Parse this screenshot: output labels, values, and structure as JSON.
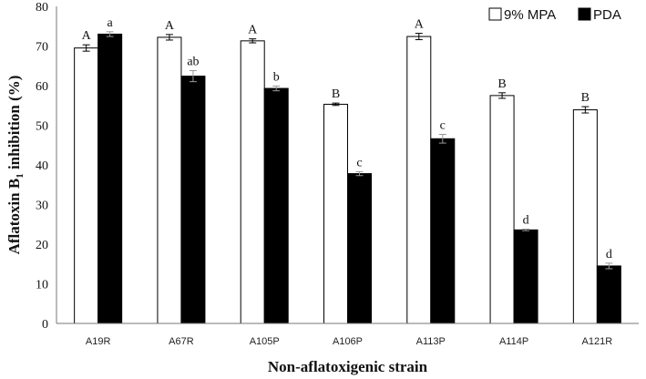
{
  "chart_data": {
    "type": "bar",
    "xlabel": "Non-aflatoxigenic strain",
    "ylabel": {
      "pre": "Aflatoxin B",
      "sub": "1",
      "post": " inhibition (%)"
    },
    "ylim": [
      0,
      80
    ],
    "yticks": [
      0,
      10,
      20,
      30,
      40,
      50,
      60,
      70,
      80
    ],
    "grid": false,
    "legend_position": "top-right",
    "categories": [
      "A19R",
      "A67R",
      "A105P",
      "A106P",
      "A113P",
      "A114P",
      "A121R"
    ],
    "series": [
      {
        "name": "9% MPA",
        "color": "#ffffff",
        "values": [
          69.5,
          72.2,
          71.3,
          55.3,
          72.4,
          57.5,
          53.9
        ],
        "errors": [
          0.8,
          0.7,
          0.5,
          0.3,
          0.8,
          0.7,
          0.8
        ],
        "labels": [
          "A",
          "A",
          "A",
          "B",
          "A",
          "B",
          "B"
        ]
      },
      {
        "name": "PDA",
        "color": "#000000",
        "values": [
          73.0,
          62.4,
          59.3,
          37.8,
          46.6,
          23.6,
          14.5
        ],
        "errors": [
          0.6,
          1.4,
          0.6,
          0.5,
          1.1,
          0.2,
          0.7
        ],
        "labels": [
          "a",
          "ab",
          "b",
          "c",
          "c",
          "d",
          "d"
        ]
      }
    ]
  }
}
